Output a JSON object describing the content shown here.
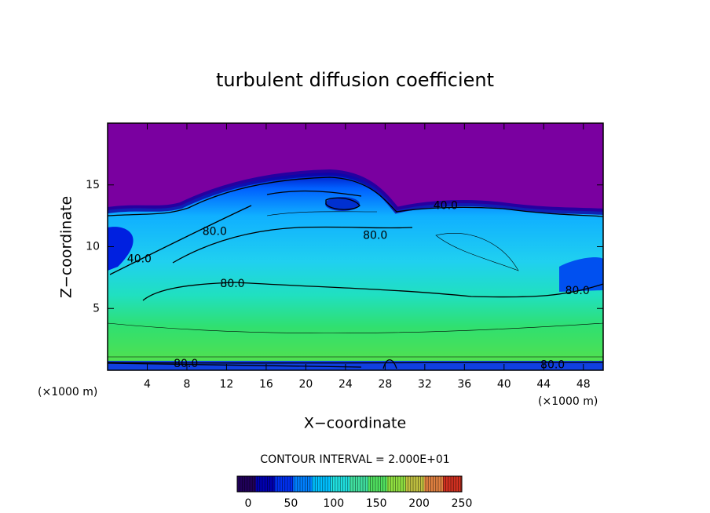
{
  "chart_data": {
    "type": "contour",
    "title": "turbulent diffusion coefficient",
    "x_label": "X−coordinate",
    "y_label": "Z−coordinate",
    "x_unit": "(×1000 m)",
    "y_unit": "(×1000 m)",
    "xlim": [
      0,
      50
    ],
    "xticks": [
      4,
      8,
      12,
      16,
      20,
      24,
      28,
      32,
      36,
      40,
      44,
      48
    ],
    "ylim": [
      0,
      20
    ],
    "yticks": [
      5,
      10,
      15
    ],
    "contour_interval": "CONTOUR INTERVAL = 2.000E+01",
    "contour_labels": {
      "values": [
        40,
        80,
        80,
        40,
        80,
        80,
        80,
        80
      ],
      "value_labels": [
        "40.0",
        "80.0",
        "80.0",
        "40.0",
        "80.0",
        "80.0",
        "80.0",
        "80.0"
      ],
      "x": [
        34.1,
        10.8,
        27.0,
        3.2,
        12.6,
        47.4,
        7.9,
        44.9
      ],
      "y": [
        13.3,
        11.2,
        10.9,
        9.0,
        7.0,
        6.4,
        0.5,
        0.4
      ]
    },
    "colorbar": {
      "clim": [
        0,
        250
      ],
      "ticks": [
        0,
        50,
        100,
        150,
        200,
        250
      ],
      "colors": [
        "#20005a",
        "#0000b0",
        "#0030f0",
        "#0080ff",
        "#00c0ff",
        "#20e0e0",
        "#40e0a0",
        "#50e060",
        "#90e040",
        "#c0c040",
        "#e08040",
        "#d03020"
      ]
    }
  }
}
